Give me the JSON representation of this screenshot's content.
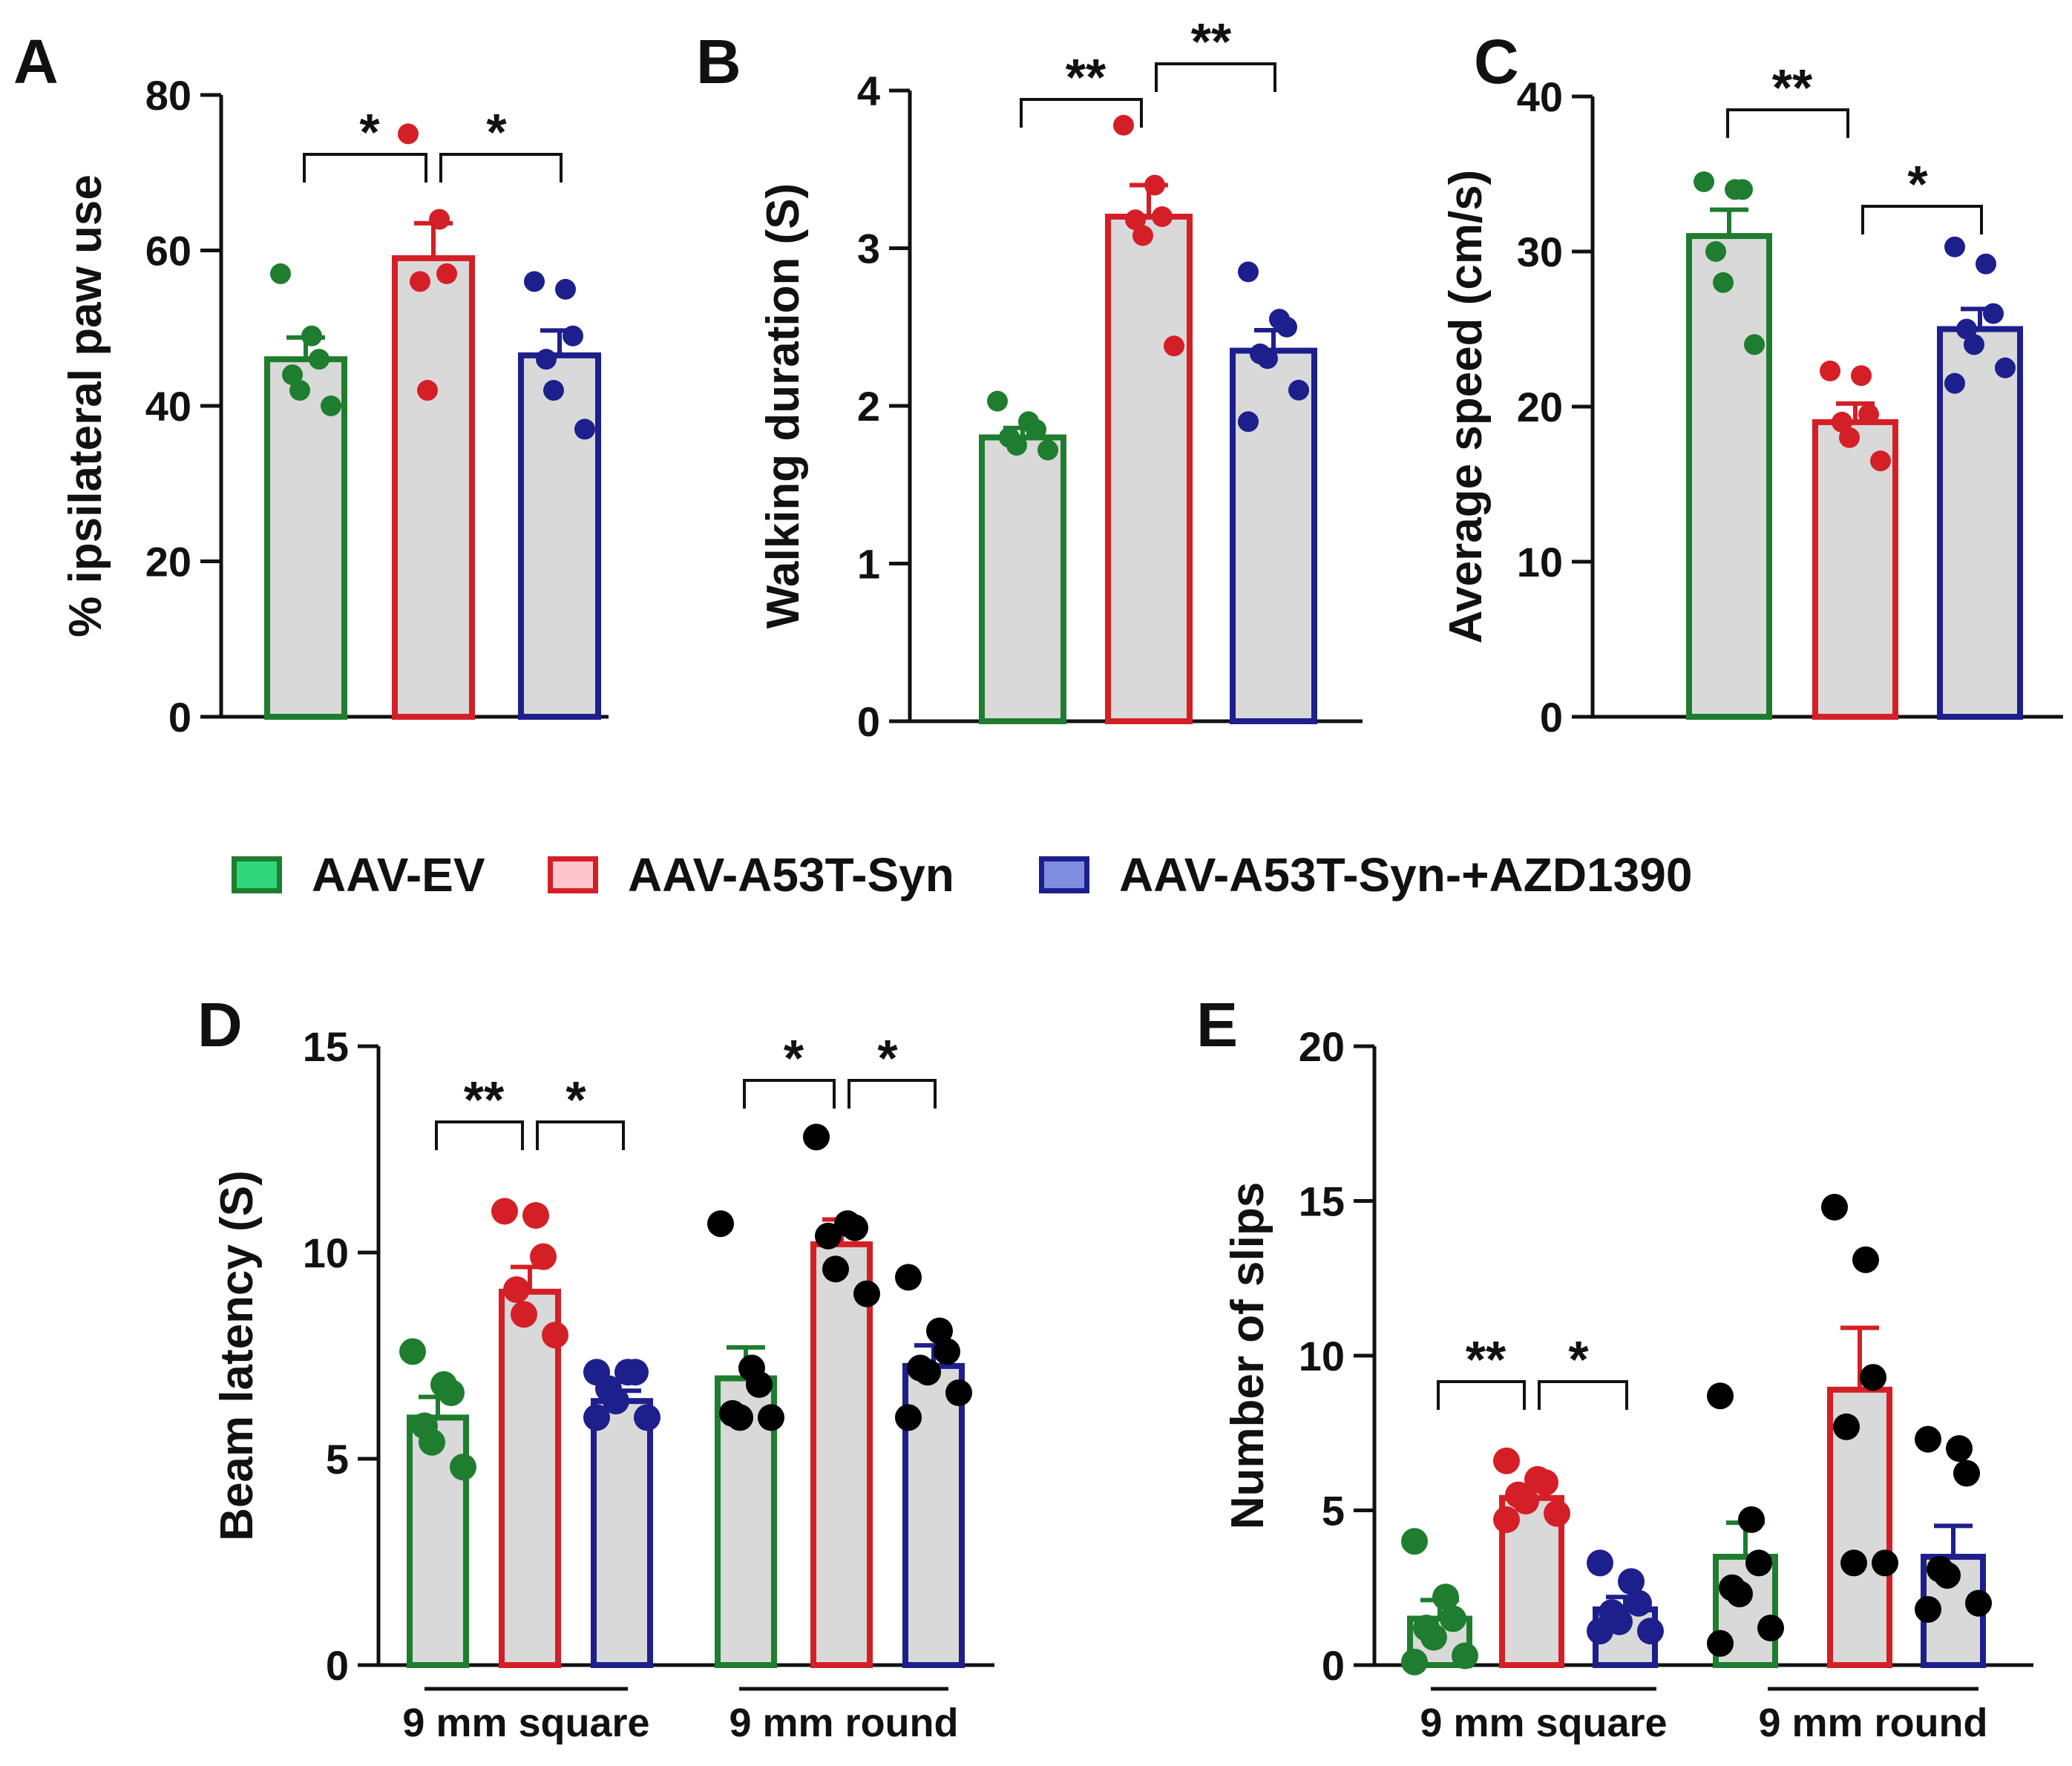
{
  "legend": [
    {
      "label": "AAV-EV",
      "edge": "#1e7d2e",
      "fill": "#2fd77a"
    },
    {
      "label": "AAV-A53T-Syn",
      "edge": "#d41f26",
      "fill": "#fcc6cc"
    },
    {
      "label": "AAV-A53T-Syn-+AZD1390",
      "edge": "#1d1f8c",
      "fill": "#7f8ee0"
    }
  ],
  "colors": {
    "bar_fill": "#d9d9d9",
    "green": "#1e7d2e",
    "red": "#d41f26",
    "blue": "#1d1f8c",
    "black": "#000000"
  },
  "chart_data": [
    {
      "panel": "A",
      "type": "bar",
      "ylabel": "% ipsilateral paw use",
      "ylim": [
        0,
        80
      ],
      "yticks": [
        0,
        20,
        40,
        60,
        80
      ],
      "categories": [
        "AAV-EV",
        "AAV-A53T-Syn",
        "AAV-A53T-Syn-+AZD1390"
      ],
      "means": [
        46,
        59,
        46.5
      ],
      "sem": [
        2.8,
        4.5,
        3.2
      ],
      "points": [
        [
          57,
          49,
          46,
          44,
          42,
          40
        ],
        [
          75,
          64,
          57,
          56,
          42
        ],
        [
          56,
          55,
          49,
          46,
          42,
          37
        ]
      ],
      "sig": [
        {
          "from": 0,
          "to": 1,
          "label": "*"
        },
        {
          "from": 1,
          "to": 2,
          "label": "*"
        }
      ]
    },
    {
      "panel": "B",
      "type": "bar",
      "ylabel": "Walking duration (S)",
      "ylim": [
        0,
        4
      ],
      "yticks": [
        0,
        1,
        2,
        3,
        4
      ],
      "categories": [
        "AAV-EV",
        "AAV-A53T-Syn",
        "AAV-A53T-Syn-+AZD1390"
      ],
      "means": [
        1.8,
        3.2,
        2.35
      ],
      "sem": [
        0.06,
        0.2,
        0.13
      ],
      "points": [
        [
          2.03,
          1.9,
          1.85,
          1.8,
          1.75,
          1.72
        ],
        [
          3.78,
          3.4,
          3.2,
          3.18,
          3.08,
          2.38
        ],
        [
          2.85,
          2.55,
          2.5,
          2.33,
          2.3,
          2.1,
          1.9
        ]
      ],
      "sig": [
        {
          "from": 0,
          "to": 1,
          "label": "**"
        },
        {
          "from": 1,
          "to": 2,
          "label": "**"
        }
      ]
    },
    {
      "panel": "C",
      "type": "bar",
      "ylabel": "Average speed (cm/s)",
      "ylim": [
        0,
        40
      ],
      "yticks": [
        0,
        10,
        20,
        30,
        40
      ],
      "categories": [
        "AAV-EV",
        "AAV-A53T-Syn",
        "AAV-A53T-Syn-+AZD1390"
      ],
      "means": [
        31,
        19,
        25
      ],
      "sem": [
        1.7,
        1.2,
        1.3
      ],
      "points": [
        [
          34.5,
          34,
          34,
          30,
          28,
          24
        ],
        [
          22.3,
          22,
          19.5,
          19,
          18,
          16.5
        ],
        [
          30.3,
          29.2,
          26,
          25,
          24,
          22.5,
          21.5
        ]
      ],
      "sig": [
        {
          "from": 0,
          "to": 1,
          "label": "**"
        },
        {
          "from": 1,
          "to": 2,
          "label": "*"
        }
      ]
    },
    {
      "panel": "D",
      "type": "bar",
      "ylabel": "Beam latency (S)",
      "ylim": [
        0,
        15
      ],
      "yticks": [
        0,
        5,
        10,
        15
      ],
      "groups": [
        "9 mm square",
        "9 mm round"
      ],
      "categories": [
        "AAV-EV",
        "AAV-A53T-Syn",
        "AAV-A53T-Syn-+AZD1390"
      ],
      "means": [
        [
          6.0,
          9.05,
          6.4
        ],
        [
          6.95,
          10.2,
          7.25
        ]
      ],
      "sem": [
        [
          0.5,
          0.6,
          0.25
        ],
        [
          0.75,
          0.6,
          0.5
        ]
      ],
      "points": [
        [
          [
            7.6,
            6.8,
            6.6,
            5.8,
            5.4,
            4.8
          ],
          [
            11.0,
            10.9,
            9.9,
            9.1,
            8.5,
            8.0
          ],
          [
            7.1,
            7.1,
            7.1,
            6.7,
            6.4,
            6.0,
            6.0
          ]
        ],
        [
          [
            10.7,
            7.2,
            6.8,
            6.1,
            6.0,
            6.0
          ],
          [
            12.8,
            10.7,
            10.6,
            10.4,
            9.6,
            9.0
          ],
          [
            9.4,
            8.1,
            7.6,
            7.2,
            7.1,
            6.6,
            6.0
          ]
        ]
      ],
      "point_color": [
        "series",
        "black"
      ],
      "sig": [
        {
          "group": 0,
          "from": 0,
          "to": 1,
          "label": "**"
        },
        {
          "group": 0,
          "from": 1,
          "to": 2,
          "label": "*"
        },
        {
          "group": 1,
          "from": 0,
          "to": 1,
          "label": "*"
        },
        {
          "group": 1,
          "from": 1,
          "to": 2,
          "label": "*"
        }
      ]
    },
    {
      "panel": "E",
      "type": "bar",
      "ylabel": "Number of slips",
      "ylim": [
        0,
        20
      ],
      "yticks": [
        0,
        5,
        10,
        15,
        20
      ],
      "groups": [
        "9 mm square",
        "9 mm round"
      ],
      "categories": [
        "AAV-EV",
        "AAV-A53T-Syn",
        "AAV-A53T-Syn-+AZD1390"
      ],
      "means": [
        [
          1.5,
          5.4,
          1.8
        ],
        [
          3.5,
          8.9,
          3.5
        ]
      ],
      "sem": [
        [
          0.6,
          0.4,
          0.4
        ],
        [
          1.1,
          2.0,
          1.0
        ]
      ],
      "points": [
        [
          [
            4.0,
            2.2,
            1.5,
            1.2,
            0.9,
            0.3,
            0.1
          ],
          [
            6.6,
            6.0,
            5.9,
            5.5,
            5.3,
            4.9,
            4.7
          ],
          [
            3.3,
            2.7,
            2.0,
            1.7,
            1.4,
            1.1,
            1.1
          ]
        ],
        [
          [
            8.7,
            4.7,
            3.3,
            2.5,
            2.3,
            1.2,
            0.7
          ],
          [
            14.8,
            13.1,
            9.3,
            7.7,
            3.3,
            3.3
          ],
          [
            7.3,
            7.0,
            6.2,
            3.1,
            2.9,
            2.0,
            1.8
          ]
        ]
      ],
      "point_color": [
        "series",
        "black"
      ],
      "sig": [
        {
          "group": 0,
          "from": 0,
          "to": 1,
          "label": "**"
        },
        {
          "group": 0,
          "from": 1,
          "to": 2,
          "label": "*"
        }
      ]
    }
  ]
}
